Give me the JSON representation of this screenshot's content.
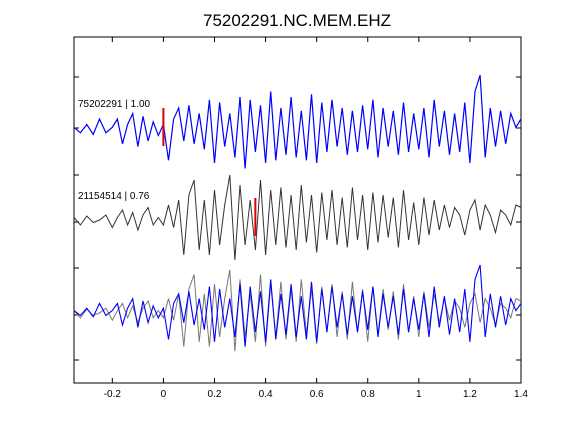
{
  "chart_data": {
    "type": "line",
    "title": "75202291.NC.MEM.EHZ",
    "xlabel": "",
    "ylabel": "",
    "xlim": [
      -0.35,
      1.4
    ],
    "x_ticks": [
      "-0.2",
      "0",
      "0.2",
      "0.4",
      "0.6",
      "0.8",
      "1",
      "1.2",
      "1.4"
    ],
    "x_tick_values": [
      -0.2,
      0,
      0.2,
      0.4,
      0.6,
      0.8,
      1.0,
      1.2,
      1.4
    ],
    "grid": false,
    "traces": [
      {
        "label": "75202291 | 1.00",
        "event_id": "75202291",
        "correlation": "1.00",
        "color": "#0000ff",
        "pick_time": 0.0,
        "pick_color": "#dd0000"
      },
      {
        "label": "21154514 | 0.76",
        "event_id": "21154514",
        "correlation": "0.76",
        "color": "#333333",
        "pick_time": 0.36,
        "pick_color": "#dd0000"
      },
      {
        "label": "",
        "overlay_colors": [
          "#777777",
          "#0000ff"
        ]
      }
    ],
    "series": [
      {
        "x": [
          -0.35,
          -0.325,
          -0.3,
          -0.275,
          -0.25,
          -0.225,
          -0.2,
          -0.18,
          -0.16,
          -0.14,
          -0.12,
          -0.1,
          -0.08,
          -0.06,
          -0.04,
          -0.02,
          0.0,
          0.02,
          0.04,
          0.06,
          0.08,
          0.1,
          0.12,
          0.14,
          0.16,
          0.18,
          0.2,
          0.22,
          0.24,
          0.26,
          0.28,
          0.3,
          0.32,
          0.34,
          0.36,
          0.38,
          0.4,
          0.42,
          0.44,
          0.46,
          0.48,
          0.5,
          0.52,
          0.54,
          0.56,
          0.58,
          0.6,
          0.62,
          0.64,
          0.66,
          0.68,
          0.7,
          0.72,
          0.74,
          0.76,
          0.78,
          0.8,
          0.82,
          0.84,
          0.86,
          0.88,
          0.9,
          0.92,
          0.94,
          0.96,
          0.98,
          1.0,
          1.02,
          1.04,
          1.06,
          1.08,
          1.1,
          1.12,
          1.14,
          1.16,
          1.18,
          1.2,
          1.22,
          1.24,
          1.26,
          1.28,
          1.3,
          1.32,
          1.34,
          1.36,
          1.38,
          1.4
        ],
        "y": [
          0.05,
          -0.05,
          0.1,
          -0.08,
          0.2,
          -0.05,
          0.05,
          0.2,
          -0.25,
          0.1,
          0.3,
          -0.3,
          0.25,
          -0.2,
          0.15,
          -0.1,
          0.1,
          -0.55,
          0.2,
          0.4,
          -0.2,
          0.45,
          -0.25,
          0.3,
          -0.35,
          0.55,
          -0.6,
          0.5,
          -0.3,
          0.3,
          -0.5,
          0.6,
          -0.7,
          0.55,
          -0.4,
          0.45,
          -0.6,
          0.7,
          -0.55,
          0.4,
          -0.45,
          0.6,
          -0.5,
          0.35,
          -0.55,
          0.65,
          -0.6,
          0.5,
          -0.4,
          0.55,
          -0.3,
          0.4,
          -0.45,
          0.35,
          -0.4,
          0.45,
          -0.35,
          0.55,
          -0.5,
          0.4,
          -0.3,
          0.35,
          -0.45,
          0.5,
          -0.4,
          0.3,
          -0.35,
          0.4,
          -0.5,
          0.55,
          -0.3,
          0.35,
          -0.45,
          0.3,
          -0.4,
          0.5,
          -0.6,
          0.7,
          1.0,
          -0.5,
          0.4,
          -0.3,
          0.35,
          -0.25,
          0.3,
          0.05,
          0.2
        ]
      },
      {
        "x": [
          -0.35,
          -0.325,
          -0.3,
          -0.275,
          -0.25,
          -0.225,
          -0.2,
          -0.18,
          -0.16,
          -0.14,
          -0.12,
          -0.1,
          -0.08,
          -0.06,
          -0.04,
          -0.02,
          0.0,
          0.02,
          0.04,
          0.06,
          0.08,
          0.1,
          0.12,
          0.14,
          0.16,
          0.18,
          0.2,
          0.22,
          0.24,
          0.26,
          0.28,
          0.3,
          0.32,
          0.34,
          0.36,
          0.38,
          0.4,
          0.42,
          0.44,
          0.46,
          0.48,
          0.5,
          0.52,
          0.54,
          0.56,
          0.58,
          0.6,
          0.62,
          0.64,
          0.66,
          0.68,
          0.7,
          0.72,
          0.74,
          0.76,
          0.78,
          0.8,
          0.82,
          0.84,
          0.86,
          0.88,
          0.9,
          0.92,
          0.94,
          0.96,
          0.98,
          1.0,
          1.02,
          1.04,
          1.06,
          1.08,
          1.1,
          1.12,
          1.14,
          1.16,
          1.18,
          1.2,
          1.22,
          1.24,
          1.26,
          1.28,
          1.3,
          1.32,
          1.34,
          1.36,
          1.38,
          1.4
        ],
        "y": [
          0.05,
          -0.1,
          0.08,
          -0.05,
          0.0,
          0.1,
          -0.15,
          0.05,
          0.2,
          -0.1,
          0.15,
          -0.2,
          0.1,
          0.25,
          -0.1,
          0.05,
          -0.1,
          0.3,
          -0.15,
          0.4,
          -0.7,
          0.5,
          0.8,
          -0.6,
          0.4,
          -0.7,
          0.6,
          -0.5,
          0.3,
          0.9,
          -0.8,
          0.7,
          -0.5,
          0.4,
          -0.6,
          0.8,
          -0.7,
          0.6,
          -0.5,
          0.65,
          -0.55,
          0.5,
          -0.6,
          0.7,
          -0.45,
          0.5,
          -0.65,
          0.55,
          -0.4,
          0.6,
          -0.5,
          0.45,
          -0.55,
          0.65,
          -0.4,
          0.5,
          -0.6,
          0.55,
          -0.45,
          0.5,
          -0.35,
          0.45,
          -0.55,
          0.6,
          -0.4,
          0.35,
          -0.5,
          0.45,
          -0.3,
          0.4,
          -0.2,
          0.3,
          -0.15,
          0.25,
          0.1,
          -0.3,
          0.2,
          0.4,
          -0.2,
          0.3,
          0.1,
          -0.25,
          0.2,
          0.1,
          -0.1,
          0.3,
          0.25
        ]
      }
    ]
  }
}
